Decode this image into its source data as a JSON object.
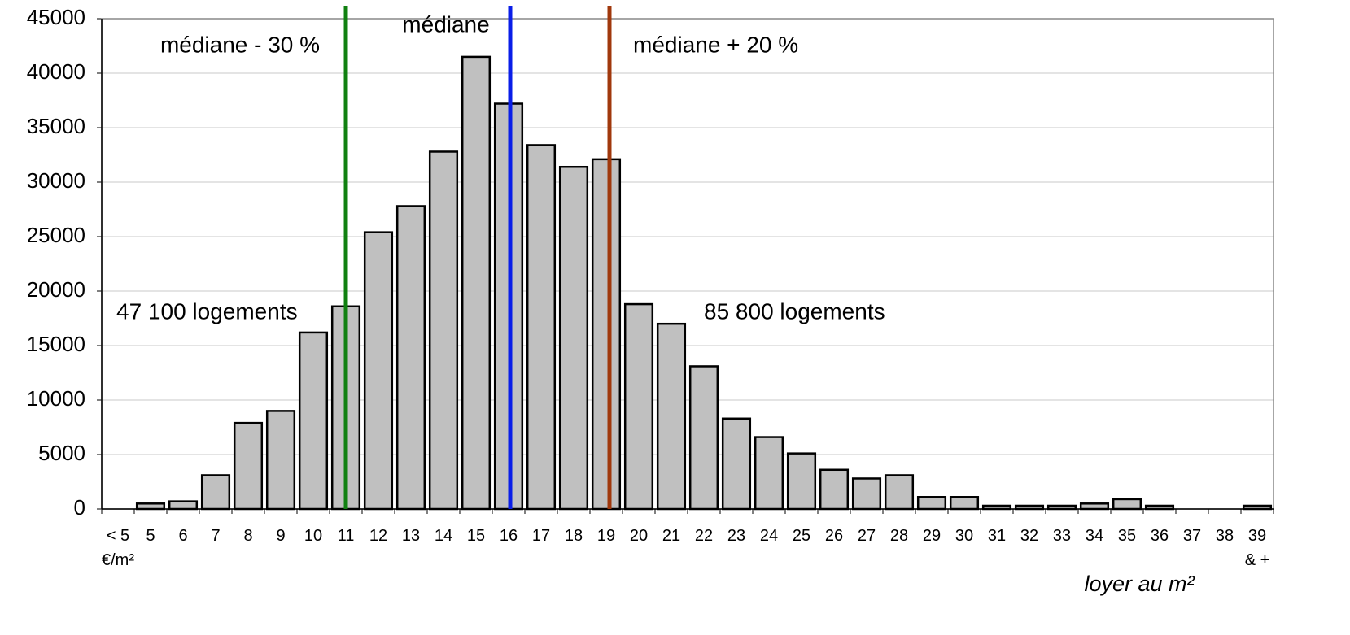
{
  "chart_data": {
    "type": "bar",
    "x_label": "loyer au m²",
    "categories": [
      "< 5\n€/m²",
      "5",
      "6",
      "7",
      "8",
      "9",
      "10",
      "11",
      "12",
      "13",
      "14",
      "15",
      "16",
      "17",
      "18",
      "19",
      "20",
      "21",
      "22",
      "23",
      "24",
      "25",
      "26",
      "27",
      "28",
      "29",
      "30",
      "31",
      "32",
      "33",
      "34",
      "35",
      "36",
      "37",
      "38",
      "39\n& +"
    ],
    "values": [
      0,
      500,
      700,
      3100,
      7900,
      9000,
      16200,
      18600,
      25400,
      27800,
      32800,
      41500,
      37200,
      33400,
      31400,
      32100,
      18800,
      17000,
      13100,
      8300,
      6600,
      5100,
      3600,
      2800,
      3100,
      1100,
      1100,
      300,
      300,
      300,
      500,
      900,
      300,
      0,
      0,
      300
    ],
    "color": "#c0c0c0",
    "ylim": [
      0,
      45000
    ],
    "yticks": [
      0,
      5000,
      10000,
      15000,
      20000,
      25000,
      30000,
      35000,
      40000,
      45000
    ],
    "grid": true,
    "vlines": [
      {
        "label": "médiane - 30 %",
        "x": 7.0,
        "color": "#108010"
      },
      {
        "label": "médiane",
        "x": 12.05,
        "color": "#0a1ee8"
      },
      {
        "label": "médiane + 20 %",
        "x": 15.1,
        "color": "#a0380c"
      }
    ],
    "annotations": [
      "47 100 logements",
      "85 800 logements"
    ]
  }
}
